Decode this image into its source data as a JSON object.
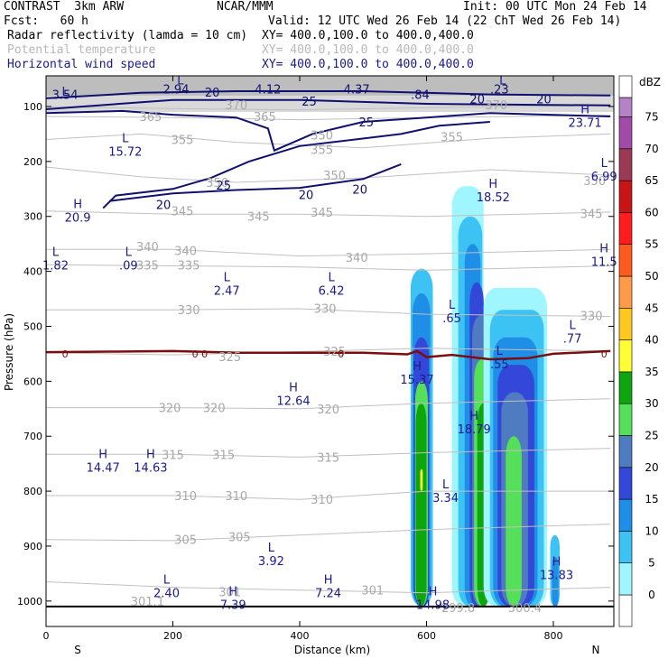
{
  "header": {
    "model": "CONTRAST  3km ARW",
    "org": "NCAR/MMM",
    "init": "Init: 00 UTC Mon 24 Feb 14",
    "fcst": "Fcst:   60 h",
    "valid": "Valid: 12 UTC Wed 26 Feb 14 (22 ChT Wed 26 Feb 14)",
    "fields": [
      {
        "name": "Radar reflectivity (lamda = 10 cm)",
        "xy": "XY= 400.0,100.0 to 400.0,400.0",
        "color": "#000000"
      },
      {
        "name": "Potential temperature",
        "xy": "XY= 400.0,100.0 to 400.0,400.0",
        "color": "#b8b8b8"
      },
      {
        "name": "Horizontal wind speed",
        "xy": "XY= 400.0,100.0 to 400.0,400.0",
        "color": "#1a1a8c"
      }
    ]
  },
  "chart_data": {
    "type": "contour",
    "xlabel": "Distance (km)",
    "ylabel": "Pressure (hPa)",
    "xlim": [
      0,
      890
    ],
    "ylim": [
      1000,
      60
    ],
    "xticks": [
      0,
      200,
      400,
      600,
      800
    ],
    "yticks": [
      100,
      200,
      300,
      400,
      500,
      600,
      700,
      800,
      900,
      1000
    ],
    "end_labels": {
      "left": "S",
      "right": "N"
    },
    "colorbar": {
      "unit": "dBZ",
      "levels": [
        "0",
        "5",
        "10",
        "15",
        "20",
        "25",
        "30",
        "35",
        "40",
        "45",
        "50",
        "55",
        "60",
        "65",
        "70",
        "75"
      ],
      "colors": [
        "#ffffff",
        "#9ff6ff",
        "#3cc3f4",
        "#1e8ee6",
        "#3347d9",
        "#4f7cc0",
        "#56e05a",
        "#0ea50e",
        "#fffd33",
        "#ffc820",
        "#ff9a4a",
        "#ff5a1f",
        "#ff1c1c",
        "#c81414",
        "#9b3a55",
        "#a24aa8",
        "#b483c5"
      ]
    },
    "theta_labels": [
      {
        "text": "365",
        "x": 165,
        "p": 118
      },
      {
        "text": "370",
        "x": 300,
        "p": 97
      },
      {
        "text": "365",
        "x": 345,
        "p": 118
      },
      {
        "text": "370",
        "x": 710,
        "p": 97
      },
      {
        "text": "355",
        "x": 215,
        "p": 160
      },
      {
        "text": "355",
        "x": 435,
        "p": 178
      },
      {
        "text": "355",
        "x": 640,
        "p": 155
      },
      {
        "text": "350",
        "x": 435,
        "p": 152
      },
      {
        "text": "350",
        "x": 270,
        "p": 238
      },
      {
        "text": "350",
        "x": 455,
        "p": 225
      },
      {
        "text": "350",
        "x": 865,
        "p": 235
      },
      {
        "text": "345",
        "x": 215,
        "p": 290
      },
      {
        "text": "345",
        "x": 335,
        "p": 300
      },
      {
        "text": "345",
        "x": 435,
        "p": 292
      },
      {
        "text": "345",
        "x": 860,
        "p": 295
      },
      {
        "text": "340",
        "x": 160,
        "p": 355
      },
      {
        "text": "340",
        "x": 220,
        "p": 362
      },
      {
        "text": "340",
        "x": 490,
        "p": 374
      },
      {
        "text": "335",
        "x": 160,
        "p": 388
      },
      {
        "text": "335",
        "x": 225,
        "p": 388
      },
      {
        "text": "330",
        "x": 225,
        "p": 470
      },
      {
        "text": "330",
        "x": 440,
        "p": 467
      },
      {
        "text": "330",
        "x": 860,
        "p": 480
      },
      {
        "text": "325",
        "x": 290,
        "p": 555
      },
      {
        "text": "325",
        "x": 455,
        "p": 545
      },
      {
        "text": "320",
        "x": 195,
        "p": 648
      },
      {
        "text": "320",
        "x": 265,
        "p": 648
      },
      {
        "text": "320",
        "x": 445,
        "p": 650
      },
      {
        "text": "315",
        "x": 200,
        "p": 733
      },
      {
        "text": "315",
        "x": 280,
        "p": 733
      },
      {
        "text": "315",
        "x": 445,
        "p": 738
      },
      {
        "text": "310",
        "x": 220,
        "p": 808
      },
      {
        "text": "310",
        "x": 300,
        "p": 808
      },
      {
        "text": "310",
        "x": 435,
        "p": 815
      },
      {
        "text": "305",
        "x": 220,
        "p": 888
      },
      {
        "text": "305",
        "x": 305,
        "p": 883
      },
      {
        "text": "301",
        "x": 290,
        "p": 983
      },
      {
        "text": "301",
        "x": 515,
        "p": 980
      },
      {
        "text": "301.1",
        "x": 160,
        "p": 1000
      },
      {
        "text": "299.8",
        "x": 650,
        "p": 1012
      },
      {
        "text": "300.4",
        "x": 755,
        "p": 1012
      }
    ],
    "wind_labels": [
      {
        "text": "3.54",
        "x": 30,
        "p": 78
      },
      {
        "text": "2.94",
        "x": 205,
        "p": 68
      },
      {
        "text": "4.12",
        "x": 350,
        "p": 68
      },
      {
        "text": "4.37",
        "x": 490,
        "p": 68
      },
      {
        "text": ".84",
        "x": 590,
        "p": 78
      },
      {
        "text": ".23",
        "x": 715,
        "p": 68
      },
      {
        "text": "20",
        "x": 262,
        "p": 74
      },
      {
        "text": "25",
        "x": 415,
        "p": 90
      },
      {
        "text": "20",
        "x": 680,
        "p": 86
      },
      {
        "text": "20",
        "x": 785,
        "p": 86
      },
      {
        "text": "25",
        "x": 505,
        "p": 128
      },
      {
        "text": "25",
        "x": 280,
        "p": 243
      },
      {
        "text": "20",
        "x": 185,
        "p": 278
      },
      {
        "text": "20",
        "x": 410,
        "p": 260
      },
      {
        "text": "20",
        "x": 495,
        "p": 250
      }
    ],
    "hl_labels": [
      {
        "t": "L",
        "x": 30,
        "p": 80,
        "v": ""
      },
      {
        "t": "L",
        "x": 212,
        "p": 60,
        "v": ""
      },
      {
        "t": "L",
        "x": 720,
        "p": 60,
        "v": ""
      },
      {
        "t": "L",
        "x": 125,
        "p": 165,
        "v": "15.72"
      },
      {
        "t": "H",
        "x": 850,
        "p": 112,
        "v": "23.71"
      },
      {
        "t": "L",
        "x": 880,
        "p": 210,
        "v": "6.99"
      },
      {
        "t": "H",
        "x": 50,
        "p": 285,
        "v": "20.9"
      },
      {
        "t": "H",
        "x": 705,
        "p": 248,
        "v": "18.52"
      },
      {
        "t": "L",
        "x": 15,
        "p": 372,
        "v": "1.82"
      },
      {
        "t": "L",
        "x": 130,
        "p": 372,
        "v": ".09"
      },
      {
        "t": "H",
        "x": 880,
        "p": 365,
        "v": "11.5"
      },
      {
        "t": "L",
        "x": 285,
        "p": 418,
        "v": "2.47"
      },
      {
        "t": "L",
        "x": 450,
        "p": 418,
        "v": "6.42"
      },
      {
        "t": "L",
        "x": 640,
        "p": 468,
        "v": ".65"
      },
      {
        "t": "L",
        "x": 830,
        "p": 505,
        "v": ".77"
      },
      {
        "t": "L",
        "x": 715,
        "p": 552,
        "v": ".55"
      },
      {
        "t": "H",
        "x": 585,
        "p": 580,
        "v": "15.37"
      },
      {
        "t": "H",
        "x": 390,
        "p": 618,
        "v": "12.64"
      },
      {
        "t": "H",
        "x": 675,
        "p": 670,
        "v": "18.79"
      },
      {
        "t": "H",
        "x": 90,
        "p": 740,
        "v": "14.47"
      },
      {
        "t": "H",
        "x": 165,
        "p": 740,
        "v": "14.63"
      },
      {
        "t": "L",
        "x": 630,
        "p": 795,
        "v": "3.34"
      },
      {
        "t": "L",
        "x": 355,
        "p": 910,
        "v": "3.92"
      },
      {
        "t": "H",
        "x": 805,
        "p": 935,
        "v": "13.83"
      },
      {
        "t": "L",
        "x": 190,
        "p": 968,
        "v": "2.40"
      },
      {
        "t": "H",
        "x": 295,
        "p": 990,
        "v": "7.39"
      },
      {
        "t": "H",
        "x": 445,
        "p": 968,
        "v": "7.24"
      },
      {
        "t": "H",
        "x": 610,
        "p": 990,
        "v": "14.98"
      }
    ],
    "zero_labels": [
      {
        "text": "0",
        "x": 30,
        "p": 550
      },
      {
        "text": "0",
        "x": 235,
        "p": 550
      },
      {
        "text": "0",
        "x": 250,
        "p": 550
      },
      {
        "text": "0",
        "x": 465,
        "p": 550
      },
      {
        "text": "0",
        "x": 880,
        "p": 550
      }
    ],
    "lines": {
      "theta_color": "#c0c0c0",
      "wind_color": "#10106e",
      "freezing_color": "#7c0d0d",
      "ground_color": "#000000"
    }
  }
}
